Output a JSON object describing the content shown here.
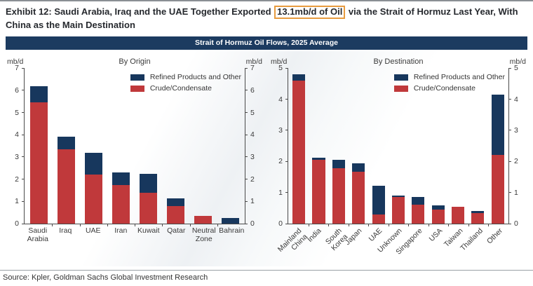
{
  "page": {
    "title_prefix": "Exhibit 12: Saudi Arabia, Iraq and the UAE Together Exported ",
    "title_highlight": "13.1mb/d of Oil",
    "title_suffix": " via the Strait of Hormuz Last Year, With China as the Main Destination",
    "band_title": "Strait of Hormuz Oil Flows, 2025 Average",
    "source": "Source: Kpler, Goldman Sachs Global Investment Research"
  },
  "colors": {
    "refined": "#17375d",
    "crude": "#c0393b",
    "band_bg": "#1c3b60",
    "highlight_border": "#e79b3f"
  },
  "chart_data": [
    {
      "type": "bar",
      "stacked": true,
      "title": "By Origin",
      "axis_unit": "mb/d",
      "ylim": [
        0,
        7
      ],
      "ytick_step": 1,
      "grid": false,
      "legend_position": "top-right",
      "label_rotation": 0,
      "categories": [
        "Saudi\nArabia",
        "Iraq",
        "UAE",
        "Iran",
        "Kuwait",
        "Qatar",
        "Neutral\nZone",
        "Bahrain"
      ],
      "series": [
        {
          "name": "Refined Products and Other",
          "key": "refined",
          "color": "#17375d",
          "values": [
            0.75,
            0.55,
            1.0,
            0.55,
            0.85,
            0.35,
            0.0,
            0.25
          ]
        },
        {
          "name": "Crude/Condensate",
          "key": "crude",
          "color": "#c0393b",
          "values": [
            5.45,
            3.35,
            2.2,
            1.75,
            1.4,
            0.8,
            0.35,
            0.0
          ]
        }
      ]
    },
    {
      "type": "bar",
      "stacked": true,
      "title": "By Destination",
      "axis_unit": "mb/d",
      "ylim": [
        0,
        5
      ],
      "ytick_step": 1,
      "grid": false,
      "legend_position": "top-right",
      "label_rotation": 45,
      "categories": [
        "Mainland\nChina",
        "India",
        "South\nKorea",
        "Japan",
        "UAE",
        "Unknown",
        "Singapore",
        "USA",
        "Taiwan",
        "Thailand",
        "Other"
      ],
      "series": [
        {
          "name": "Refined Products and Other",
          "key": "refined",
          "color": "#17375d",
          "values": [
            0.2,
            0.07,
            0.28,
            0.25,
            0.92,
            0.05,
            0.25,
            0.15,
            0.0,
            0.05,
            1.95
          ]
        },
        {
          "name": "Crude/Condensate",
          "key": "crude",
          "color": "#c0393b",
          "values": [
            4.6,
            2.05,
            1.78,
            1.68,
            0.3,
            0.85,
            0.62,
            0.45,
            0.55,
            0.35,
            2.2
          ]
        }
      ]
    }
  ]
}
